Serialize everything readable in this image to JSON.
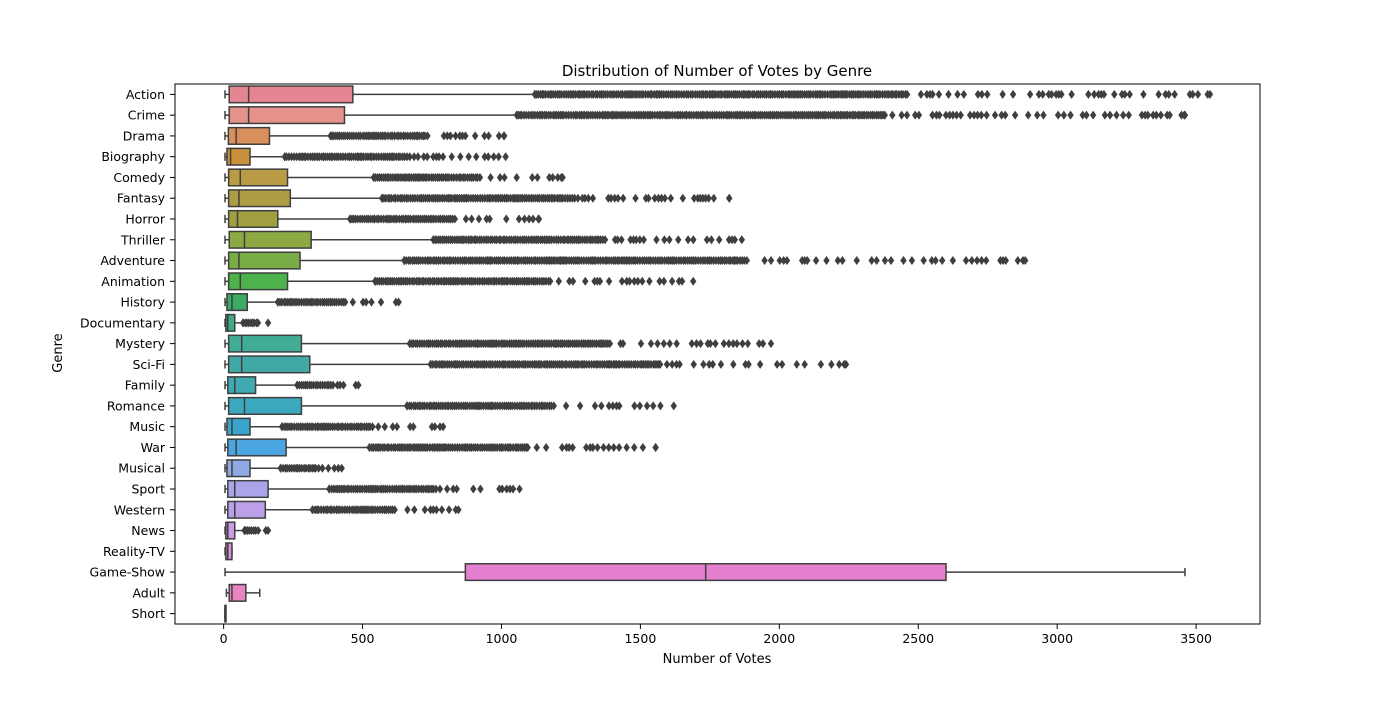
{
  "chart_data": {
    "type": "box",
    "orientation": "horizontal",
    "title": "Distribution of Number of Votes by Genre",
    "xlabel": "Number of Votes",
    "ylabel": "Genre",
    "xlim": [
      -175,
      3730
    ],
    "xticks": [
      0,
      500,
      1000,
      1500,
      2000,
      2500,
      3000,
      3500
    ],
    "grid": false,
    "legend": "none",
    "box_edge_color": "#3f3f3f",
    "series": [
      {
        "name": "Action",
        "color": "#e58591",
        "whisker_low": 5,
        "q1": 20,
        "median": 90,
        "q3": 465,
        "whisker_high": 1120,
        "max": 3550
      },
      {
        "name": "Crime",
        "color": "#e5938a",
        "whisker_low": 5,
        "q1": 20,
        "median": 90,
        "q3": 435,
        "whisker_high": 1055,
        "max": 3460
      },
      {
        "name": "Drama",
        "color": "#d98f5c",
        "whisker_low": 5,
        "q1": 17,
        "median": 45,
        "q3": 165,
        "whisker_high": 385,
        "max": 1010
      },
      {
        "name": "Biography",
        "color": "#c9913c",
        "whisker_low": 5,
        "q1": 12,
        "median": 25,
        "q3": 95,
        "whisker_high": 220,
        "max": 1015
      },
      {
        "name": "Comedy",
        "color": "#b99b45",
        "whisker_low": 5,
        "q1": 18,
        "median": 60,
        "q3": 230,
        "whisker_high": 540,
        "max": 1220
      },
      {
        "name": "Fantasy",
        "color": "#ad9e45",
        "whisker_low": 5,
        "q1": 18,
        "median": 55,
        "q3": 240,
        "whisker_high": 570,
        "max": 1820
      },
      {
        "name": "Horror",
        "color": "#a19f40",
        "whisker_low": 5,
        "q1": 18,
        "median": 50,
        "q3": 195,
        "whisker_high": 455,
        "max": 1135
      },
      {
        "name": "Thriller",
        "color": "#8ca944",
        "whisker_low": 5,
        "q1": 20,
        "median": 75,
        "q3": 315,
        "whisker_high": 755,
        "max": 1865
      },
      {
        "name": "Adventure",
        "color": "#79ac45",
        "whisker_low": 5,
        "q1": 18,
        "median": 55,
        "q3": 275,
        "whisker_high": 650,
        "max": 2885
      },
      {
        "name": "Animation",
        "color": "#4db24c",
        "whisker_low": 5,
        "q1": 18,
        "median": 60,
        "q3": 230,
        "whisker_high": 545,
        "max": 1690
      },
      {
        "name": "History",
        "color": "#3bab66",
        "whisker_low": 5,
        "q1": 12,
        "median": 30,
        "q3": 85,
        "whisker_high": 195,
        "max": 630
      },
      {
        "name": "Documentary",
        "color": "#40ac84",
        "whisker_low": 5,
        "q1": 8,
        "median": 15,
        "q3": 40,
        "whisker_high": 70,
        "max": 160
      },
      {
        "name": "Mystery",
        "color": "#41ad97",
        "whisker_low": 5,
        "q1": 18,
        "median": 65,
        "q3": 280,
        "whisker_high": 670,
        "max": 1970
      },
      {
        "name": "Sci-Fi",
        "color": "#40a9a5",
        "whisker_low": 5,
        "q1": 18,
        "median": 65,
        "q3": 310,
        "whisker_high": 745,
        "max": 2240
      },
      {
        "name": "Family",
        "color": "#3faab2",
        "whisker_low": 5,
        "q1": 15,
        "median": 40,
        "q3": 115,
        "whisker_high": 265,
        "max": 485
      },
      {
        "name": "Romance",
        "color": "#3ca8bd",
        "whisker_low": 5,
        "q1": 18,
        "median": 75,
        "q3": 280,
        "whisker_high": 660,
        "max": 1620
      },
      {
        "name": "Music",
        "color": "#3aa5cc",
        "whisker_low": 5,
        "q1": 12,
        "median": 30,
        "q3": 95,
        "whisker_high": 210,
        "max": 790
      },
      {
        "name": "War",
        "color": "#4aa5e0",
        "whisker_low": 5,
        "q1": 15,
        "median": 45,
        "q3": 225,
        "whisker_high": 525,
        "max": 1555
      },
      {
        "name": "Musical",
        "color": "#8fa9e6",
        "whisker_low": 5,
        "q1": 12,
        "median": 30,
        "q3": 95,
        "whisker_high": 205,
        "max": 425
      },
      {
        "name": "Sport",
        "color": "#aaa5ea",
        "whisker_low": 5,
        "q1": 15,
        "median": 40,
        "q3": 160,
        "whisker_high": 380,
        "max": 1065
      },
      {
        "name": "Western",
        "color": "#bb9fe9",
        "whisker_low": 5,
        "q1": 15,
        "median": 40,
        "q3": 150,
        "whisker_high": 320,
        "max": 845
      },
      {
        "name": "News",
        "color": "#cf9be8",
        "whisker_low": 5,
        "q1": 8,
        "median": 15,
        "q3": 40,
        "whisker_high": 75,
        "max": 160
      },
      {
        "name": "Reality-TV",
        "color": "#dc91e0",
        "whisker_low": 5,
        "q1": 8,
        "median": 15,
        "q3": 30,
        "whisker_high": 30,
        "max": 30
      },
      {
        "name": "Game-Show",
        "color": "#e57fcf",
        "whisker_low": 5,
        "q1": 870,
        "median": 1735,
        "q3": 2600,
        "whisker_high": 3460,
        "max": 3460
      },
      {
        "name": "Adult",
        "color": "#e884bf",
        "whisker_low": 10,
        "q1": 20,
        "median": 30,
        "q3": 80,
        "whisker_high": 130,
        "max": 130
      },
      {
        "name": "Short",
        "color": "#e48da9",
        "whisker_low": 5,
        "q1": 5,
        "median": 5,
        "q3": 5,
        "whisker_high": 5,
        "max": 5
      }
    ]
  }
}
